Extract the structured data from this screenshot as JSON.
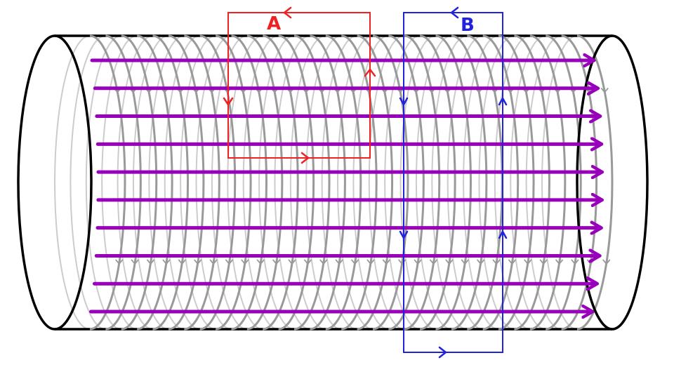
{
  "labels": {
    "loop_a": "A",
    "loop_b": "B"
  },
  "colors": {
    "loop_a": "#ee2222",
    "loop_b": "#2222dd",
    "field_lines": "#9900bb",
    "windings": "#999999",
    "windings_back": "#cccccc",
    "cylinder_outline": "#000000"
  },
  "counts": {
    "field_lines": 10,
    "windings": 32
  }
}
